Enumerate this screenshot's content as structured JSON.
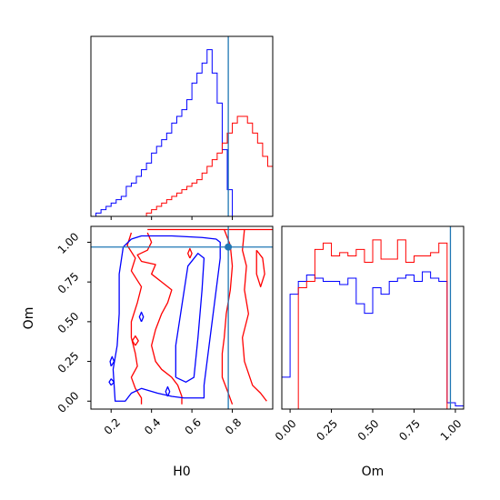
{
  "chart_data": {
    "type": "corner",
    "colors": {
      "series_a": "#0000ff",
      "series_b": "#ff0000",
      "truth": "#1f77b4"
    },
    "truth": {
      "H0": 0.78,
      "Om": 0.97
    },
    "panels": {
      "hist_H0": {
        "xlim": [
          0.1,
          1.0
        ],
        "bins": [
          0.1,
          0.125,
          0.15,
          0.175,
          0.2,
          0.225,
          0.25,
          0.275,
          0.3,
          0.325,
          0.35,
          0.375,
          0.4,
          0.425,
          0.45,
          0.475,
          0.5,
          0.525,
          0.55,
          0.575,
          0.6,
          0.625,
          0.65,
          0.675,
          0.7,
          0.725,
          0.75,
          0.775,
          0.8,
          0.825,
          0.85,
          0.875,
          0.9,
          0.925,
          0.95,
          0.975,
          1.0
        ],
        "series_a_counts": [
          0,
          1,
          2,
          3,
          4,
          5,
          6,
          9,
          10,
          12,
          14,
          16,
          19,
          21,
          23,
          25,
          28,
          30,
          32,
          35,
          40,
          43,
          46,
          50,
          43,
          34,
          20,
          8,
          0,
          0,
          0,
          0,
          0,
          0,
          0,
          0
        ],
        "series_b_counts": [
          0,
          0,
          0,
          0,
          0,
          0,
          0,
          0,
          0,
          0,
          0,
          1,
          2,
          3,
          4,
          5,
          6,
          7,
          8,
          9,
          10,
          11,
          13,
          15,
          17,
          19,
          22,
          25,
          28,
          30,
          30,
          28,
          25,
          22,
          18,
          15
        ]
      },
      "hist_Om": {
        "xlim": [
          -0.05,
          1.05
        ],
        "edges": [
          -0.05,
          0.0,
          0.05,
          0.1,
          0.15,
          0.2,
          0.25,
          0.3,
          0.35,
          0.4,
          0.45,
          0.5,
          0.55,
          0.6,
          0.65,
          0.7,
          0.75,
          0.8,
          0.85,
          0.9,
          0.95,
          1.0,
          1.05
        ],
        "series_a_counts": [
          10,
          36,
          40,
          42,
          41,
          40,
          40,
          39,
          41,
          33,
          30,
          38,
          36,
          40,
          41,
          42,
          40,
          43,
          41,
          40,
          2,
          1
        ],
        "series_b_counts": [
          0,
          0,
          38,
          40,
          50,
          52,
          48,
          49,
          48,
          50,
          46,
          53,
          47,
          47,
          53,
          46,
          48,
          48,
          49,
          52,
          0,
          0
        ]
      },
      "contour_H0_Om": {
        "xlim": [
          0.1,
          1.0
        ],
        "ylim": [
          -0.05,
          1.1
        ],
        "series_a_contours": [
          [
            [
              0.3,
              1.02
            ],
            [
              0.35,
              1.04
            ],
            [
              0.5,
              1.04
            ],
            [
              0.65,
              1.03
            ],
            [
              0.72,
              1.02
            ],
            [
              0.74,
              1.0
            ],
            [
              0.74,
              0.9
            ],
            [
              0.72,
              0.7
            ],
            [
              0.7,
              0.5
            ],
            [
              0.68,
              0.3
            ],
            [
              0.66,
              0.1
            ],
            [
              0.66,
              0.02
            ],
            [
              0.62,
              0.02
            ],
            [
              0.56,
              0.02
            ],
            [
              0.5,
              0.03
            ],
            [
              0.43,
              0.05
            ],
            [
              0.35,
              0.08
            ],
            [
              0.3,
              0.05
            ],
            [
              0.27,
              0.0
            ],
            [
              0.22,
              0.0
            ],
            [
              0.21,
              0.2
            ],
            [
              0.23,
              0.35
            ],
            [
              0.24,
              0.55
            ],
            [
              0.24,
              0.8
            ],
            [
              0.26,
              0.97
            ],
            [
              0.3,
              1.02
            ]
          ],
          [
            [
              0.52,
              0.15
            ],
            [
              0.57,
              0.12
            ],
            [
              0.61,
              0.15
            ],
            [
              0.63,
              0.4
            ],
            [
              0.65,
              0.7
            ],
            [
              0.66,
              0.9
            ],
            [
              0.63,
              0.93
            ],
            [
              0.58,
              0.85
            ],
            [
              0.55,
              0.6
            ],
            [
              0.52,
              0.35
            ],
            [
              0.52,
              0.15
            ]
          ],
          [
            [
              0.2,
              0.22
            ],
            [
              0.215,
              0.25
            ],
            [
              0.205,
              0.28
            ],
            [
              0.195,
              0.25
            ],
            [
              0.2,
              0.22
            ]
          ],
          [
            [
              0.2,
              0.1
            ],
            [
              0.215,
              0.12
            ],
            [
              0.2,
              0.14
            ],
            [
              0.19,
              0.12
            ],
            [
              0.2,
              0.1
            ]
          ],
          [
            [
              0.35,
              0.5
            ],
            [
              0.36,
              0.53
            ],
            [
              0.35,
              0.56
            ],
            [
              0.34,
              0.53
            ],
            [
              0.35,
              0.5
            ]
          ],
          [
            [
              0.48,
              0.03
            ],
            [
              0.49,
              0.06
            ],
            [
              0.48,
              0.09
            ],
            [
              0.47,
              0.06
            ],
            [
              0.48,
              0.03
            ]
          ]
        ],
        "series_b_contours": [
          [
            [
              0.38,
              1.08
            ],
            [
              0.55,
              1.08
            ],
            [
              0.7,
              1.08
            ],
            [
              0.85,
              1.08
            ],
            [
              1.0,
              1.08
            ]
          ],
          [
            [
              0.38,
              1.06
            ],
            [
              0.4,
              1.0
            ],
            [
              0.38,
              0.95
            ],
            [
              0.33,
              0.92
            ],
            [
              0.35,
              0.88
            ],
            [
              0.42,
              0.86
            ],
            [
              0.4,
              0.8
            ],
            [
              0.45,
              0.75
            ],
            [
              0.5,
              0.7
            ],
            [
              0.48,
              0.62
            ],
            [
              0.45,
              0.55
            ],
            [
              0.42,
              0.45
            ],
            [
              0.4,
              0.35
            ],
            [
              0.42,
              0.25
            ],
            [
              0.45,
              0.2
            ],
            [
              0.5,
              0.15
            ],
            [
              0.53,
              0.1
            ],
            [
              0.55,
              0.03
            ],
            [
              0.55,
              -0.02
            ]
          ],
          [
            [
              0.3,
              1.06
            ],
            [
              0.28,
              0.98
            ],
            [
              0.32,
              0.9
            ],
            [
              0.3,
              0.82
            ],
            [
              0.35,
              0.72
            ],
            [
              0.33,
              0.62
            ],
            [
              0.3,
              0.5
            ],
            [
              0.3,
              0.4
            ],
            [
              0.32,
              0.3
            ],
            [
              0.33,
              0.22
            ],
            [
              0.3,
              0.15
            ],
            [
              0.32,
              0.08
            ],
            [
              0.35,
              0.02
            ],
            [
              0.35,
              -0.02
            ]
          ],
          [
            [
              0.76,
              1.08
            ],
            [
              0.79,
              0.98
            ],
            [
              0.8,
              0.85
            ],
            [
              0.79,
              0.7
            ],
            [
              0.77,
              0.55
            ],
            [
              0.76,
              0.4
            ],
            [
              0.75,
              0.3
            ],
            [
              0.75,
              0.15
            ],
            [
              0.78,
              0.05
            ],
            [
              0.8,
              -0.02
            ]
          ],
          [
            [
              0.86,
              1.08
            ],
            [
              0.85,
              0.95
            ],
            [
              0.87,
              0.85
            ],
            [
              0.86,
              0.7
            ],
            [
              0.88,
              0.55
            ],
            [
              0.85,
              0.4
            ],
            [
              0.86,
              0.25
            ],
            [
              0.9,
              0.1
            ],
            [
              0.94,
              0.05
            ],
            [
              0.97,
              0.0
            ]
          ],
          [
            [
              0.92,
              0.95
            ],
            [
              0.95,
              0.9
            ],
            [
              0.96,
              0.8
            ],
            [
              0.94,
              0.72
            ],
            [
              0.92,
              0.8
            ],
            [
              0.92,
              0.95
            ]
          ],
          [
            [
              0.32,
              0.35
            ],
            [
              0.335,
              0.38
            ],
            [
              0.32,
              0.41
            ],
            [
              0.305,
              0.38
            ],
            [
              0.32,
              0.35
            ]
          ],
          [
            [
              0.59,
              0.9
            ],
            [
              0.6,
              0.93
            ],
            [
              0.59,
              0.96
            ],
            [
              0.58,
              0.93
            ],
            [
              0.59,
              0.9
            ]
          ]
        ]
      }
    },
    "axes": {
      "contour_x": {
        "label": "H0",
        "ticks": [
          0.2,
          0.4,
          0.6,
          0.8
        ],
        "tick_labels": [
          "0.2",
          "0.4",
          "0.6",
          "0.8"
        ]
      },
      "contour_y": {
        "label": "Om",
        "ticks": [
          0.0,
          0.25,
          0.5,
          0.75,
          1.0
        ],
        "tick_labels": [
          "0.00",
          "0.25",
          "0.50",
          "0.75",
          "1.00"
        ]
      },
      "om_hist_x": {
        "label": "Om",
        "ticks": [
          0.0,
          0.25,
          0.5,
          0.75,
          1.0
        ],
        "tick_labels": [
          "0.00",
          "0.25",
          "0.50",
          "0.75",
          "1.00"
        ]
      }
    }
  }
}
